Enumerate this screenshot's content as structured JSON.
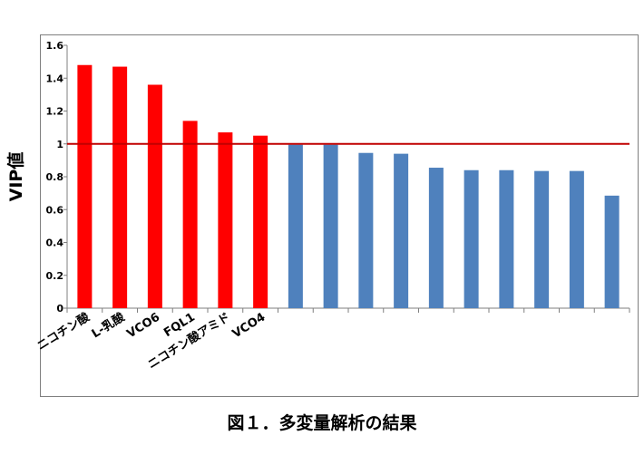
{
  "caption": "図１．多変量解析の結果",
  "chart_data": {
    "type": "bar",
    "ylabel": "VIP値",
    "xlabel": "",
    "ylim": [
      0,
      1.6
    ],
    "yticks": [
      "0",
      "0.2",
      "0.4",
      "0.6",
      "0.8",
      "1",
      "1.2",
      "1.4",
      "1.6"
    ],
    "grid": false,
    "reference_line": {
      "y": 1,
      "color": "#c00000"
    },
    "categories": [
      "ニコチン酸",
      "L-乳酸",
      "VCO6",
      "FQL1",
      "ニコチン酸アミド",
      "VCO4",
      "",
      "",
      "",
      "",
      "",
      "",
      "",
      "",
      "",
      ""
    ],
    "values": [
      1.48,
      1.47,
      1.36,
      1.14,
      1.07,
      1.05,
      0.995,
      0.995,
      0.945,
      0.94,
      0.855,
      0.84,
      0.84,
      0.835,
      0.835,
      0.685
    ],
    "colors": {
      "highlight": "#ff0000",
      "normal": "#4f81bd"
    },
    "highlight_count": 6
  }
}
